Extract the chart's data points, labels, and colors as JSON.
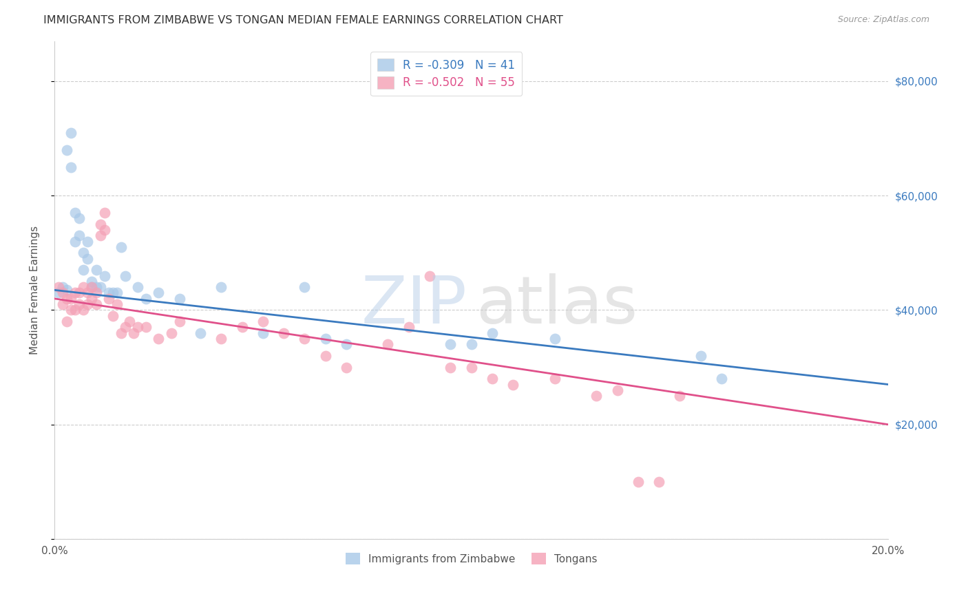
{
  "title": "IMMIGRANTS FROM ZIMBABWE VS TONGAN MEDIAN FEMALE EARNINGS CORRELATION CHART",
  "source": "Source: ZipAtlas.com",
  "ylabel": "Median Female Earnings",
  "xlim": [
    0,
    0.2
  ],
  "ylim": [
    0,
    87000
  ],
  "yticks": [
    0,
    20000,
    40000,
    60000,
    80000
  ],
  "xticks": [
    0.0,
    0.02,
    0.04,
    0.06,
    0.08,
    0.1,
    0.12,
    0.14,
    0.16,
    0.18,
    0.2
  ],
  "ytick_labels": [
    "",
    "$20,000",
    "$40,000",
    "$60,000",
    "$80,000"
  ],
  "legend1_label": "R = -0.309   N = 41",
  "legend2_label": "R = -0.502   N = 55",
  "legend_bottom1": "Immigrants from Zimbabwe",
  "legend_bottom2": "Tongans",
  "blue_color": "#a8c8e8",
  "pink_color": "#f4a0b5",
  "blue_line_color": "#3a7abf",
  "pink_line_color": "#e0508a",
  "blue_x": [
    0.001,
    0.002,
    0.003,
    0.003,
    0.004,
    0.004,
    0.005,
    0.005,
    0.006,
    0.006,
    0.007,
    0.007,
    0.008,
    0.008,
    0.009,
    0.009,
    0.01,
    0.01,
    0.011,
    0.012,
    0.013,
    0.014,
    0.015,
    0.016,
    0.017,
    0.02,
    0.022,
    0.025,
    0.03,
    0.035,
    0.04,
    0.05,
    0.06,
    0.065,
    0.07,
    0.095,
    0.1,
    0.105,
    0.12,
    0.155,
    0.16
  ],
  "blue_y": [
    43000,
    44000,
    43500,
    68000,
    71000,
    65000,
    57000,
    52000,
    56000,
    53000,
    50000,
    47000,
    52000,
    49000,
    45000,
    44000,
    47000,
    44000,
    44000,
    46000,
    43000,
    43000,
    43000,
    51000,
    46000,
    44000,
    42000,
    43000,
    42000,
    36000,
    44000,
    36000,
    44000,
    35000,
    34000,
    34000,
    34000,
    36000,
    35000,
    32000,
    28000
  ],
  "pink_x": [
    0.001,
    0.002,
    0.002,
    0.003,
    0.003,
    0.004,
    0.004,
    0.005,
    0.005,
    0.006,
    0.006,
    0.007,
    0.007,
    0.008,
    0.008,
    0.009,
    0.009,
    0.01,
    0.01,
    0.011,
    0.011,
    0.012,
    0.012,
    0.013,
    0.014,
    0.015,
    0.016,
    0.017,
    0.018,
    0.019,
    0.02,
    0.022,
    0.025,
    0.028,
    0.03,
    0.04,
    0.045,
    0.05,
    0.055,
    0.06,
    0.065,
    0.07,
    0.08,
    0.085,
    0.09,
    0.095,
    0.1,
    0.105,
    0.11,
    0.12,
    0.13,
    0.135,
    0.14,
    0.145,
    0.15
  ],
  "pink_y": [
    44000,
    43000,
    41000,
    42000,
    38000,
    42000,
    40000,
    43000,
    40000,
    43000,
    41000,
    44000,
    40000,
    43000,
    41000,
    44000,
    42000,
    43000,
    41000,
    55000,
    53000,
    57000,
    54000,
    42000,
    39000,
    41000,
    36000,
    37000,
    38000,
    36000,
    37000,
    37000,
    35000,
    36000,
    38000,
    35000,
    37000,
    38000,
    36000,
    35000,
    32000,
    30000,
    34000,
    37000,
    46000,
    30000,
    30000,
    28000,
    27000,
    28000,
    25000,
    26000,
    10000,
    10000,
    25000
  ]
}
